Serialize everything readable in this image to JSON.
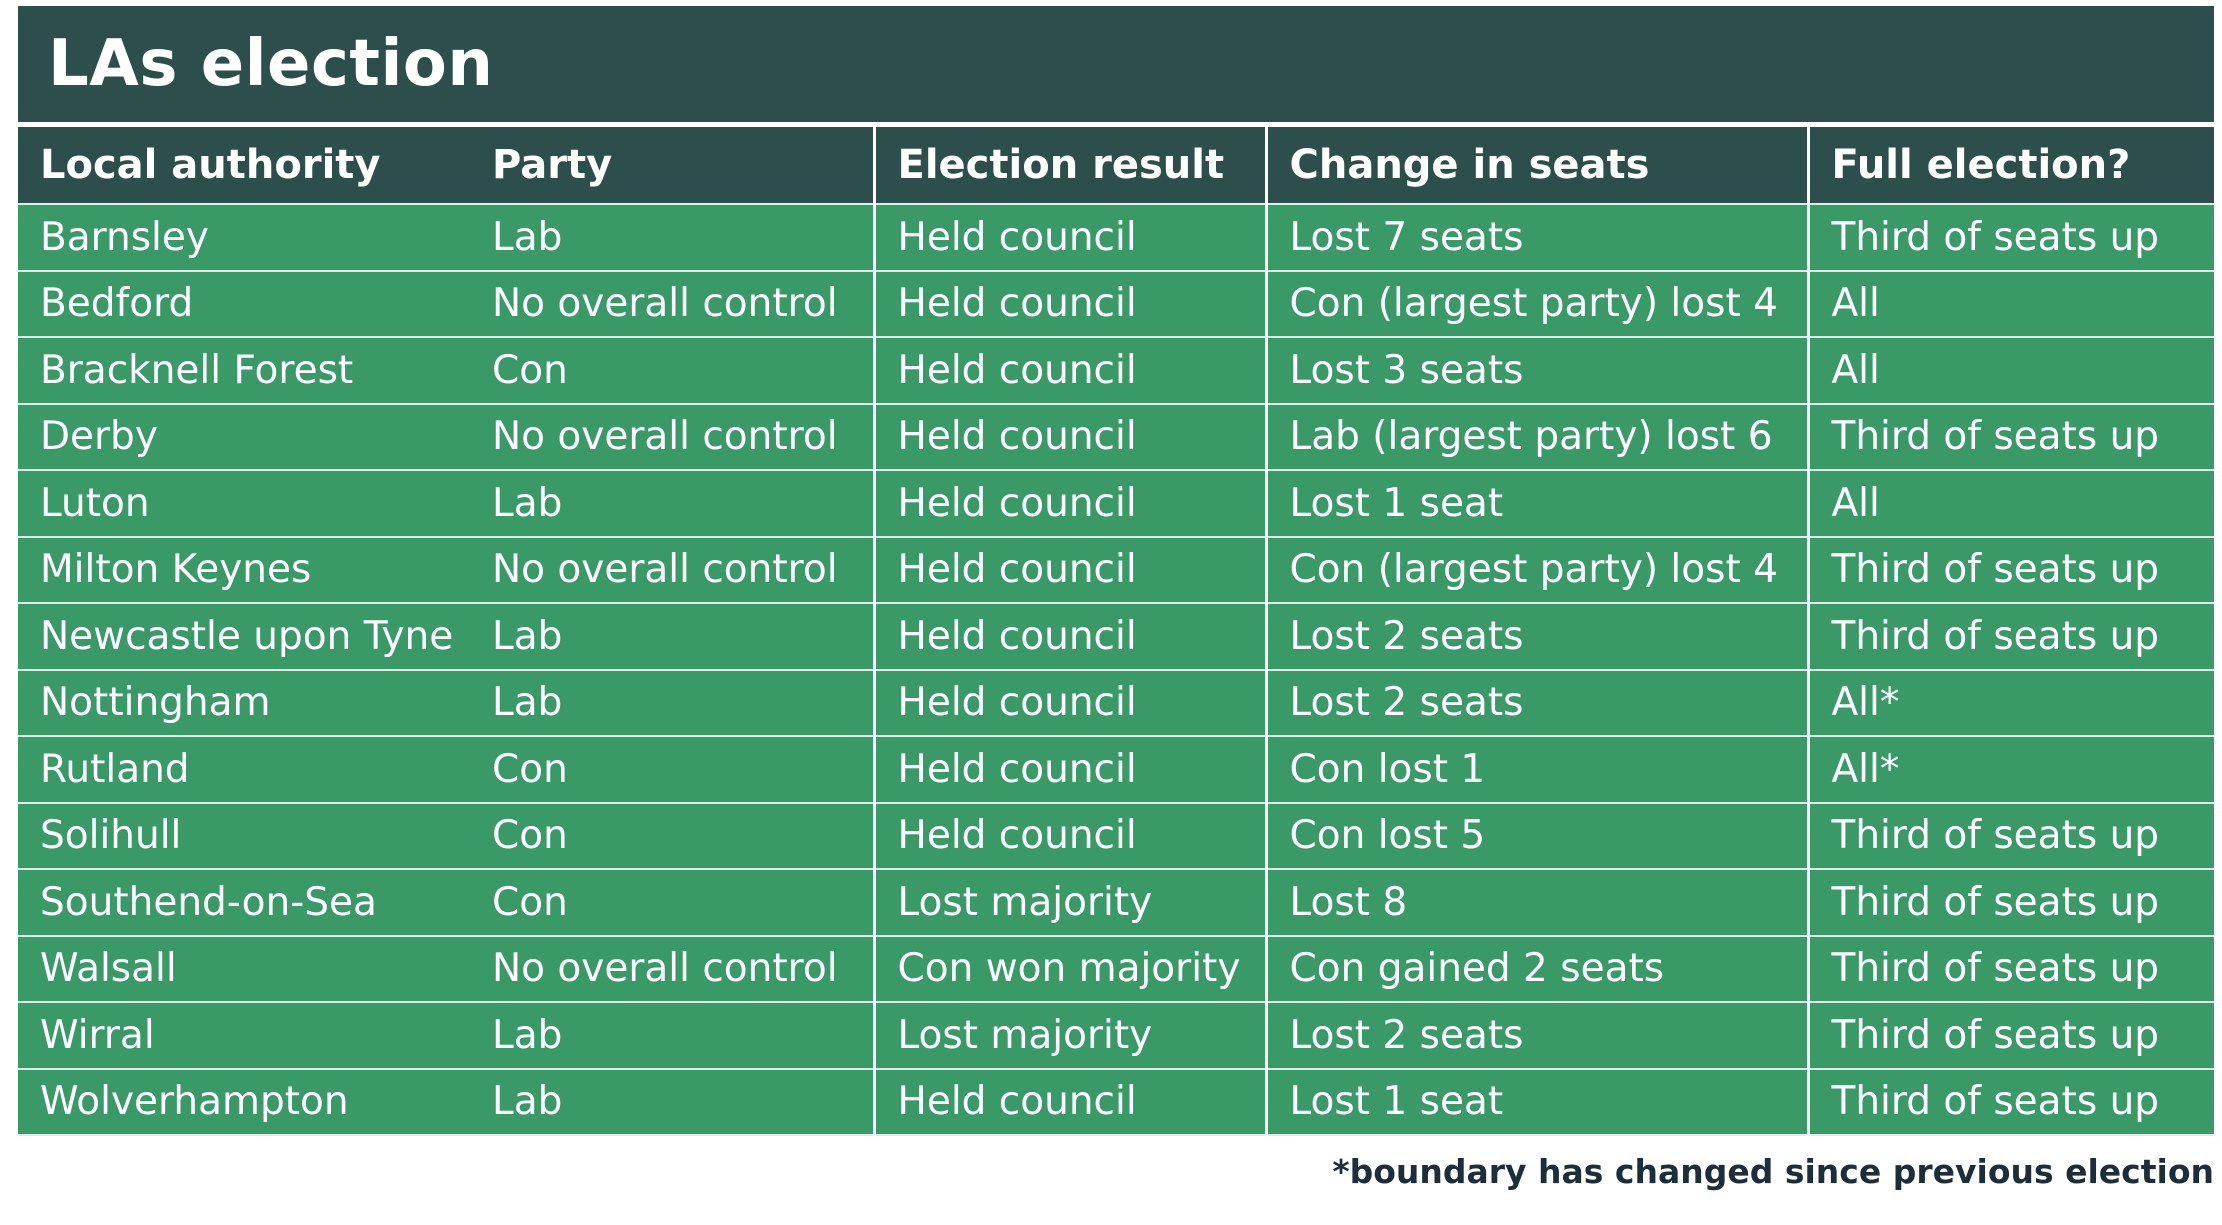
{
  "title": "LAs election",
  "colors": {
    "header_bg": "#2c4f4c",
    "row_bg": "#3a9a67",
    "text": "#ffffff",
    "footnote_text": "#1d2e3b"
  },
  "table": {
    "headers": [
      "Local authority",
      "Party",
      "Election result",
      "Change in seats",
      "Full election?"
    ],
    "rows": [
      [
        "Barnsley",
        "Lab",
        "Held council",
        "Lost 7 seats",
        "Third of seats up"
      ],
      [
        "Bedford",
        "No overall control",
        "Held council",
        "Con (largest party) lost 4",
        "All"
      ],
      [
        "Bracknell Forest",
        "Con",
        "Held council",
        "Lost 3 seats",
        "All"
      ],
      [
        "Derby",
        "No overall control",
        "Held council",
        "Lab (largest party) lost 6",
        "Third of seats up"
      ],
      [
        "Luton",
        "Lab",
        "Held council",
        "Lost 1 seat",
        "All"
      ],
      [
        "Milton Keynes",
        "No overall control",
        "Held council",
        "Con (largest party) lost 4",
        "Third of seats up"
      ],
      [
        "Newcastle upon Tyne",
        "Lab",
        "Held council",
        "Lost 2 seats",
        "Third of seats up"
      ],
      [
        "Nottingham",
        "Lab",
        "Held council",
        "Lost 2 seats",
        "All*"
      ],
      [
        "Rutland",
        "Con",
        "Held council",
        "Con lost 1",
        "All*"
      ],
      [
        "Solihull",
        "Con",
        "Held council",
        "Con lost 5",
        "Third of seats up"
      ],
      [
        "Southend-on-Sea",
        "Con",
        "Lost majority",
        "Lost 8",
        "Third of seats up"
      ],
      [
        "Walsall",
        "No overall control",
        "Con won majority",
        "Con gained 2 seats",
        "Third of seats up"
      ],
      [
        "Wirral",
        "Lab",
        "Lost majority",
        "Lost 2 seats",
        "Third of seats up"
      ],
      [
        "Wolverhampton",
        "Lab",
        "Held council",
        "Lost 1 seat",
        "Third of seats up"
      ]
    ]
  },
  "footnote": "*boundary has changed since previous election"
}
